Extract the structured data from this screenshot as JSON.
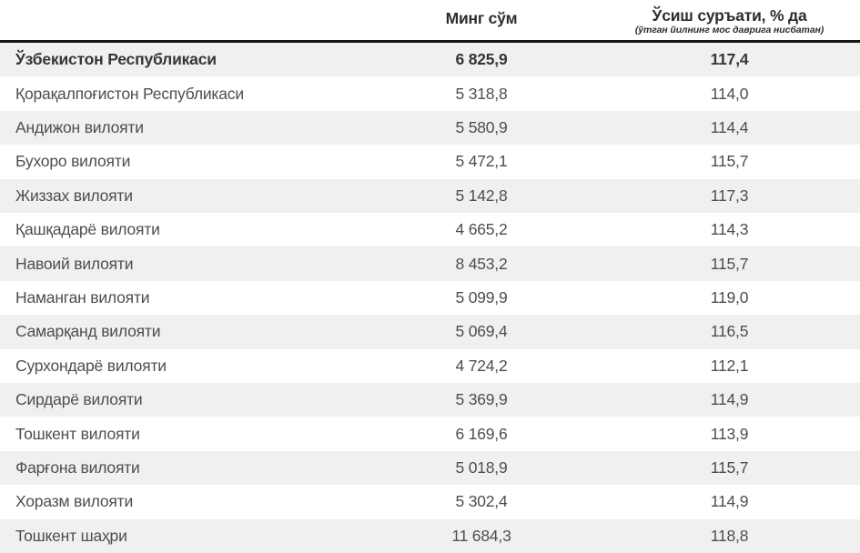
{
  "table": {
    "columns": [
      {
        "label": ""
      },
      {
        "label": "Минг сўм"
      },
      {
        "label": "Ўсиш суръати, % да",
        "sublabel": "(ўтган йилнинг мос даврига нисбатан)"
      }
    ],
    "rows": [
      {
        "region": "Ўзбекистон Республикаси",
        "value": "6 825,9",
        "growth": "117,4",
        "emphasis": true
      },
      {
        "region": "Қорақалпоғистон Республикаси",
        "value": "5 318,8",
        "growth": "114,0",
        "emphasis": false
      },
      {
        "region": "Андижон вилояти",
        "value": "5 580,9",
        "growth": "114,4",
        "emphasis": false
      },
      {
        "region": "Бухоро вилояти",
        "value": "5 472,1",
        "growth": "115,7",
        "emphasis": false
      },
      {
        "region": "Жиззах вилояти",
        "value": "5 142,8",
        "growth": "117,3",
        "emphasis": false
      },
      {
        "region": "Қашқадарё вилояти",
        "value": "4 665,2",
        "growth": "114,3",
        "emphasis": false
      },
      {
        "region": "Навоий вилояти",
        "value": "8 453,2",
        "growth": "115,7",
        "emphasis": false
      },
      {
        "region": "Наманган вилояти",
        "value": "5 099,9",
        "growth": "119,0",
        "emphasis": false
      },
      {
        "region": "Самарқанд вилояти",
        "value": "5 069,4",
        "growth": "116,5",
        "emphasis": false
      },
      {
        "region": "Сурхондарё вилояти",
        "value": "4 724,2",
        "growth": "112,1",
        "emphasis": false
      },
      {
        "region": "Сирдарё вилояти",
        "value": "5 369,9",
        "growth": "114,9",
        "emphasis": false
      },
      {
        "region": "Тошкент вилояти",
        "value": "6 169,6",
        "growth": "113,9",
        "emphasis": false
      },
      {
        "region": "Фарғона вилояти",
        "value": "5 018,9",
        "growth": "115,7",
        "emphasis": false
      },
      {
        "region": "Хоразм вилояти",
        "value": "5 302,4",
        "growth": "114,9",
        "emphasis": false
      },
      {
        "region": "Тошкент шаҳри",
        "value": "11 684,3",
        "growth": "118,8",
        "emphasis": false
      }
    ]
  },
  "chart_data": {
    "type": "table",
    "title": "",
    "columns": [
      "",
      "Минг сўм",
      "Ўсиш суръати, % да (ўтган йилнинг мос даврига нисбатан)"
    ],
    "rows": [
      [
        "Ўзбекистон Республикаси",
        6825.9,
        117.4
      ],
      [
        "Қорақалпоғистон Республикаси",
        5318.8,
        114.0
      ],
      [
        "Андижон вилояти",
        5580.9,
        114.4
      ],
      [
        "Бухоро вилояти",
        5472.1,
        115.7
      ],
      [
        "Жиззах вилояти",
        5142.8,
        117.3
      ],
      [
        "Қашқадарё вилояти",
        4665.2,
        114.3
      ],
      [
        "Навоий вилояти",
        8453.2,
        115.7
      ],
      [
        "Наманган вилояти",
        5099.9,
        119.0
      ],
      [
        "Самарқанд вилояти",
        5069.4,
        116.5
      ],
      [
        "Сурхондарё вилояти",
        4724.2,
        112.1
      ],
      [
        "Сирдарё вилояти",
        5369.9,
        114.9
      ],
      [
        "Тошкент вилояти",
        6169.6,
        113.9
      ],
      [
        "Фарғона вилояти",
        5018.9,
        115.7
      ],
      [
        "Хоразм вилояти",
        5302.4,
        114.9
      ],
      [
        "Тошкент шаҳри",
        11684.3,
        118.8
      ]
    ],
    "layout": {
      "stripes": true,
      "total_row_index": 0
    }
  },
  "colors": {
    "stripe": "#f0f0f0",
    "row_text": "#4e4e4e",
    "header_text": "#2d2d2d",
    "separator": "#161616",
    "background": "#ffffff"
  }
}
